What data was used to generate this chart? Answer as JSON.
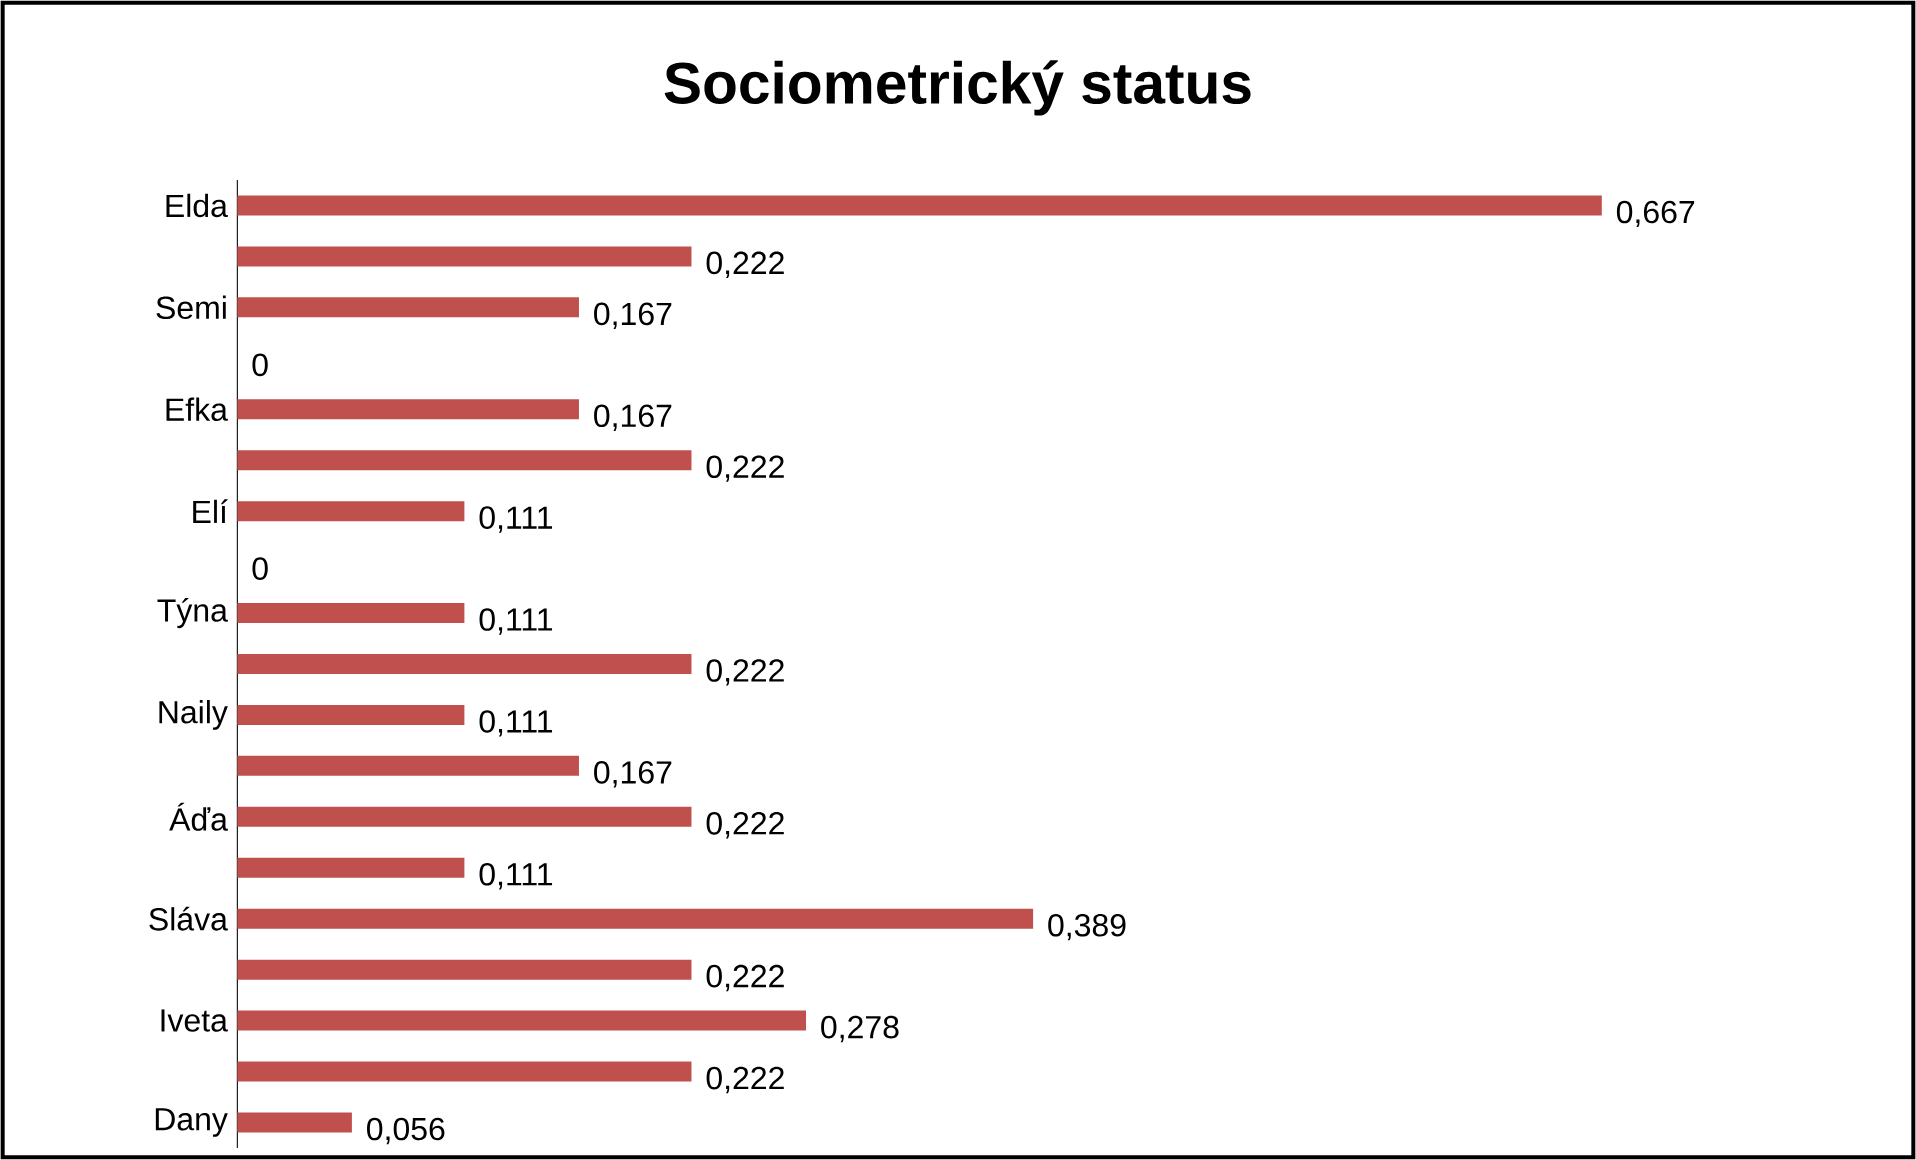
{
  "chart_data": {
    "type": "bar",
    "orientation": "horizontal",
    "title": "Sociometrický status",
    "categories": [
      "Elda",
      null,
      "Semi",
      null,
      "Efka",
      null,
      "Elí",
      null,
      "Týna",
      null,
      "Naily",
      null,
      "Áďa",
      null,
      "Sláva",
      null,
      "Iveta",
      null,
      "Dany"
    ],
    "values": [
      0.667,
      0.222,
      0.167,
      0,
      0.167,
      0.222,
      0.111,
      0,
      0.111,
      0.222,
      0.111,
      0.167,
      0.222,
      0.111,
      0.389,
      0.222,
      0.278,
      0.222,
      0.056
    ],
    "value_labels": [
      "0,667",
      "0,222",
      "0,167",
      "0",
      "0,167",
      "0,222",
      "0,111",
      "0",
      "0,111",
      "0,222",
      "0,111",
      "0,167",
      "0,222",
      "0,111",
      "0,389",
      "0,222",
      "0,278",
      "0,222",
      "0,056"
    ],
    "color": "#c0504d"
  }
}
